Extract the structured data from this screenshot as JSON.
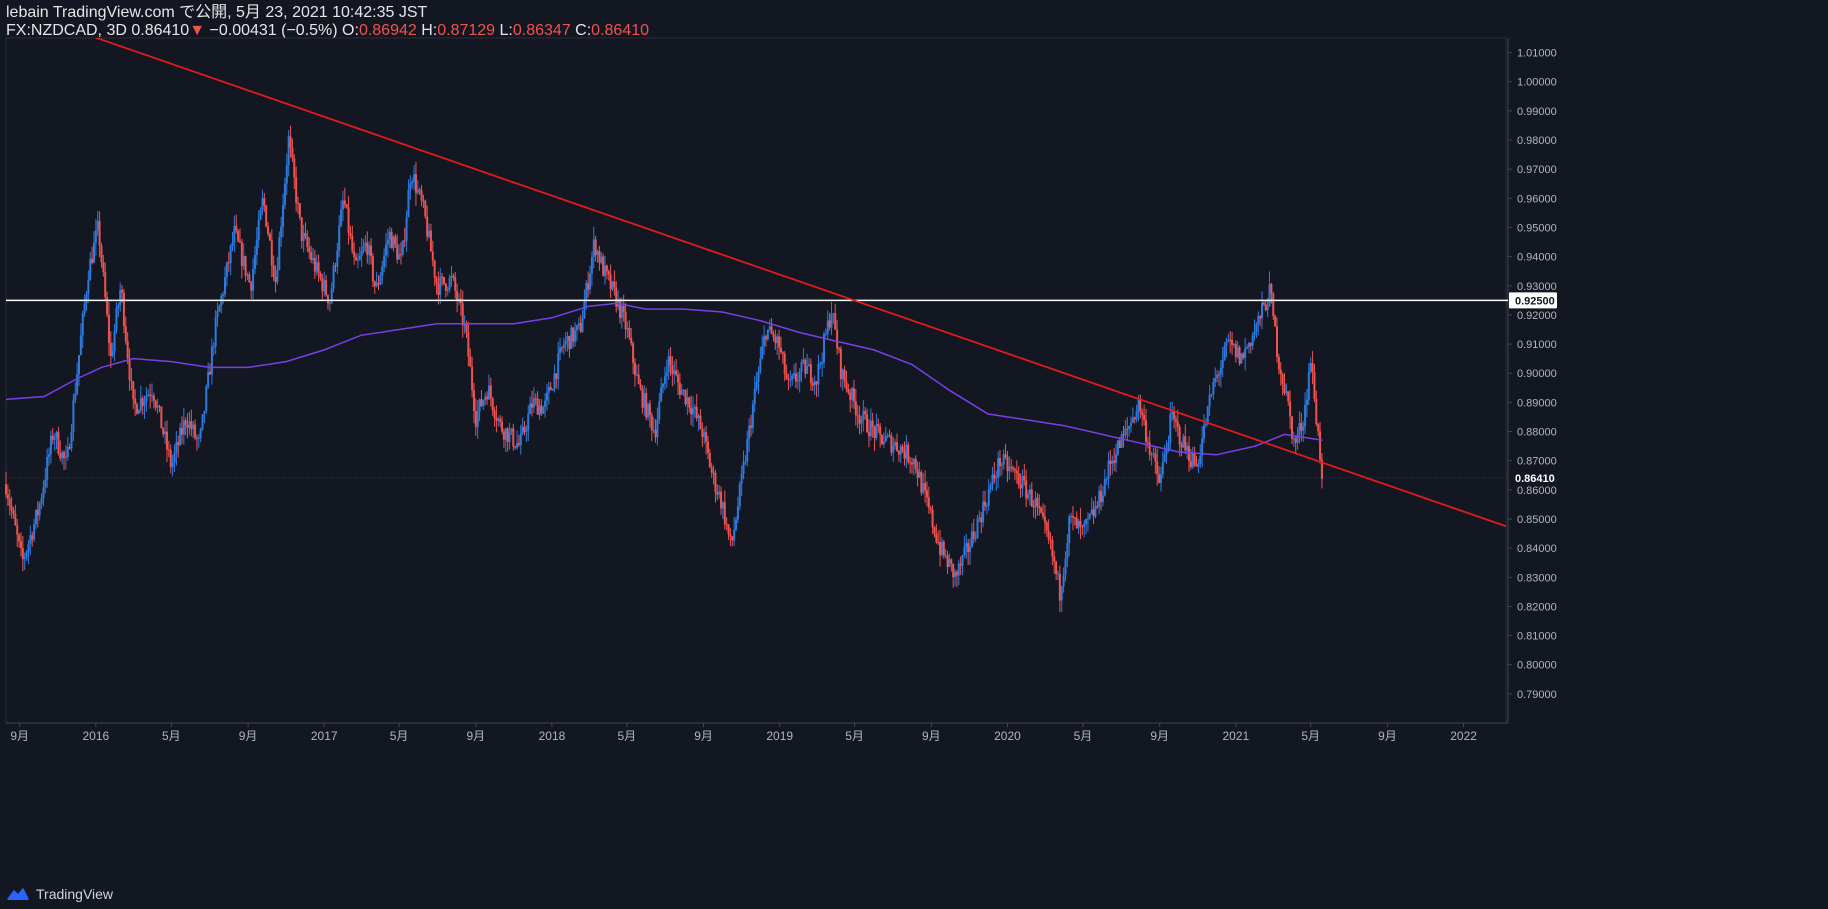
{
  "header": {
    "publish_line": "lebain TradingView.com で公開, 5月 23, 2021 10:42:35 JST",
    "symbol": "FX:NZDCAD, 3D",
    "last_price": "0.86410",
    "change_arrow": "▼",
    "change": "−0.00431 (−0.5%)",
    "o_label": "O:",
    "o_value": "0.86942",
    "h_label": "H:",
    "h_value": "0.87129",
    "l_label": "L:",
    "l_value": "0.86347",
    "c_label": "C:",
    "c_value": "0.86410"
  },
  "footer": {
    "brand": "TradingView",
    "logo_icon": "tradingview-cloud-icon"
  },
  "colors": {
    "background": "#131722",
    "up": "#2e7bdf",
    "down": "#f05350",
    "ma": "#7b3fe4",
    "trendline": "#e31b1b",
    "hline": "#ffffff",
    "axis_text": "#b2b5be"
  },
  "chart_data": {
    "type": "candlestick",
    "title": "FX:NZDCAD, 3D",
    "ylim": [
      0.78,
      1.015
    ],
    "x_range": [
      "2015-08-10",
      "2022-03-10"
    ],
    "y_ticks": [
      "1.01000",
      "1.00000",
      "0.99000",
      "0.98000",
      "0.97000",
      "0.96000",
      "0.95000",
      "0.94000",
      "0.93000",
      "0.92000",
      "0.91000",
      "0.90000",
      "0.89000",
      "0.88000",
      "0.87000",
      "0.86000",
      "0.85000",
      "0.84000",
      "0.83000",
      "0.82000",
      "0.81000",
      "0.80000",
      "0.79000"
    ],
    "x_ticks": [
      {
        "date": "2015-09-01",
        "label": "9月"
      },
      {
        "date": "2016-01-01",
        "label": "2016"
      },
      {
        "date": "2016-05-01",
        "label": "5月"
      },
      {
        "date": "2016-09-01",
        "label": "9月"
      },
      {
        "date": "2017-01-01",
        "label": "2017"
      },
      {
        "date": "2017-05-01",
        "label": "5月"
      },
      {
        "date": "2017-09-01",
        "label": "9月"
      },
      {
        "date": "2018-01-01",
        "label": "2018"
      },
      {
        "date": "2018-05-01",
        "label": "5月"
      },
      {
        "date": "2018-09-01",
        "label": "9月"
      },
      {
        "date": "2019-01-01",
        "label": "2019"
      },
      {
        "date": "2019-05-01",
        "label": "5月"
      },
      {
        "date": "2019-09-01",
        "label": "9月"
      },
      {
        "date": "2020-01-01",
        "label": "2020"
      },
      {
        "date": "2020-05-01",
        "label": "5月"
      },
      {
        "date": "2020-09-01",
        "label": "9月"
      },
      {
        "date": "2021-01-01",
        "label": "2021"
      },
      {
        "date": "2021-05-01",
        "label": "5月"
      },
      {
        "date": "2021-09-01",
        "label": "9月"
      },
      {
        "date": "2022-01-01",
        "label": "2022"
      }
    ],
    "price_path": [
      {
        "date": "2015-08-10",
        "value": 0.862
      },
      {
        "date": "2015-09-05",
        "value": 0.835
      },
      {
        "date": "2015-10-01",
        "value": 0.853
      },
      {
        "date": "2015-10-25",
        "value": 0.88
      },
      {
        "date": "2015-11-15",
        "value": 0.868
      },
      {
        "date": "2015-12-20",
        "value": 0.935
      },
      {
        "date": "2016-01-05",
        "value": 0.95
      },
      {
        "date": "2016-01-25",
        "value": 0.905
      },
      {
        "date": "2016-02-10",
        "value": 0.93
      },
      {
        "date": "2016-03-01",
        "value": 0.888
      },
      {
        "date": "2016-04-01",
        "value": 0.895
      },
      {
        "date": "2016-05-01",
        "value": 0.868
      },
      {
        "date": "2016-05-25",
        "value": 0.885
      },
      {
        "date": "2016-06-15",
        "value": 0.875
      },
      {
        "date": "2016-07-10",
        "value": 0.915
      },
      {
        "date": "2016-08-10",
        "value": 0.948
      },
      {
        "date": "2016-09-05",
        "value": 0.93
      },
      {
        "date": "2016-09-25",
        "value": 0.96
      },
      {
        "date": "2016-10-15",
        "value": 0.932
      },
      {
        "date": "2016-11-05",
        "value": 0.98
      },
      {
        "date": "2016-11-25",
        "value": 0.948
      },
      {
        "date": "2016-12-20",
        "value": 0.935
      },
      {
        "date": "2017-01-10",
        "value": 0.925
      },
      {
        "date": "2017-02-01",
        "value": 0.96
      },
      {
        "date": "2017-02-20",
        "value": 0.935
      },
      {
        "date": "2017-03-10",
        "value": 0.945
      },
      {
        "date": "2017-03-25",
        "value": 0.928
      },
      {
        "date": "2017-04-15",
        "value": 0.948
      },
      {
        "date": "2017-05-05",
        "value": 0.938
      },
      {
        "date": "2017-05-20",
        "value": 0.97
      },
      {
        "date": "2017-06-10",
        "value": 0.955
      },
      {
        "date": "2017-07-01",
        "value": 0.93
      },
      {
        "date": "2017-07-25",
        "value": 0.932
      },
      {
        "date": "2017-08-15",
        "value": 0.915
      },
      {
        "date": "2017-09-01",
        "value": 0.885
      },
      {
        "date": "2017-09-20",
        "value": 0.895
      },
      {
        "date": "2017-10-10",
        "value": 0.882
      },
      {
        "date": "2017-11-10",
        "value": 0.875
      },
      {
        "date": "2017-12-01",
        "value": 0.89
      },
      {
        "date": "2017-12-20",
        "value": 0.888
      },
      {
        "date": "2018-01-20",
        "value": 0.91
      },
      {
        "date": "2018-02-15",
        "value": 0.915
      },
      {
        "date": "2018-03-10",
        "value": 0.945
      },
      {
        "date": "2018-03-25",
        "value": 0.935
      },
      {
        "date": "2018-04-15",
        "value": 0.925
      },
      {
        "date": "2018-05-01",
        "value": 0.915
      },
      {
        "date": "2018-05-20",
        "value": 0.895
      },
      {
        "date": "2018-06-15",
        "value": 0.88
      },
      {
        "date": "2018-07-05",
        "value": 0.905
      },
      {
        "date": "2018-07-25",
        "value": 0.895
      },
      {
        "date": "2018-08-10",
        "value": 0.89
      },
      {
        "date": "2018-08-30",
        "value": 0.88
      },
      {
        "date": "2018-09-15",
        "value": 0.865
      },
      {
        "date": "2018-10-01",
        "value": 0.855
      },
      {
        "date": "2018-10-15",
        "value": 0.84
      },
      {
        "date": "2018-10-30",
        "value": 0.86
      },
      {
        "date": "2018-11-20",
        "value": 0.89
      },
      {
        "date": "2018-12-10",
        "value": 0.915
      },
      {
        "date": "2018-12-30",
        "value": 0.91
      },
      {
        "date": "2019-01-15",
        "value": 0.895
      },
      {
        "date": "2019-02-10",
        "value": 0.902
      },
      {
        "date": "2019-03-01",
        "value": 0.898
      },
      {
        "date": "2019-03-25",
        "value": 0.922
      },
      {
        "date": "2019-04-10",
        "value": 0.9
      },
      {
        "date": "2019-05-10",
        "value": 0.885
      },
      {
        "date": "2019-06-10",
        "value": 0.878
      },
      {
        "date": "2019-07-10",
        "value": 0.875
      },
      {
        "date": "2019-08-05",
        "value": 0.87
      },
      {
        "date": "2019-08-25",
        "value": 0.855
      },
      {
        "date": "2019-09-15",
        "value": 0.84
      },
      {
        "date": "2019-10-10",
        "value": 0.83
      },
      {
        "date": "2019-10-30",
        "value": 0.84
      },
      {
        "date": "2019-11-25",
        "value": 0.855
      },
      {
        "date": "2019-12-20",
        "value": 0.87
      },
      {
        "date": "2020-01-15",
        "value": 0.865
      },
      {
        "date": "2020-02-15",
        "value": 0.855
      },
      {
        "date": "2020-03-10",
        "value": 0.84
      },
      {
        "date": "2020-03-25",
        "value": 0.825
      },
      {
        "date": "2020-04-10",
        "value": 0.85
      },
      {
        "date": "2020-05-01",
        "value": 0.845
      },
      {
        "date": "2020-05-25",
        "value": 0.855
      },
      {
        "date": "2020-06-15",
        "value": 0.87
      },
      {
        "date": "2020-07-10",
        "value": 0.88
      },
      {
        "date": "2020-07-30",
        "value": 0.89
      },
      {
        "date": "2020-08-15",
        "value": 0.875
      },
      {
        "date": "2020-09-01",
        "value": 0.862
      },
      {
        "date": "2020-09-20",
        "value": 0.885
      },
      {
        "date": "2020-10-10",
        "value": 0.875
      },
      {
        "date": "2020-10-30",
        "value": 0.868
      },
      {
        "date": "2020-11-25",
        "value": 0.895
      },
      {
        "date": "2020-12-20",
        "value": 0.91
      },
      {
        "date": "2021-01-10",
        "value": 0.905
      },
      {
        "date": "2021-02-01",
        "value": 0.915
      },
      {
        "date": "2021-02-25",
        "value": 0.928
      },
      {
        "date": "2021-03-10",
        "value": 0.905
      },
      {
        "date": "2021-03-25",
        "value": 0.89
      },
      {
        "date": "2021-04-05",
        "value": 0.875
      },
      {
        "date": "2021-04-20",
        "value": 0.885
      },
      {
        "date": "2021-05-01",
        "value": 0.905
      },
      {
        "date": "2021-05-10",
        "value": 0.885
      },
      {
        "date": "2021-05-20",
        "value": 0.864
      }
    ],
    "moving_average": [
      {
        "date": "2015-08-10",
        "value": 0.891
      },
      {
        "date": "2015-10-10",
        "value": 0.892
      },
      {
        "date": "2015-12-01",
        "value": 0.898
      },
      {
        "date": "2016-01-10",
        "value": 0.902
      },
      {
        "date": "2016-03-01",
        "value": 0.905
      },
      {
        "date": "2016-05-01",
        "value": 0.904
      },
      {
        "date": "2016-07-01",
        "value": 0.902
      },
      {
        "date": "2016-09-01",
        "value": 0.902
      },
      {
        "date": "2016-11-01",
        "value": 0.904
      },
      {
        "date": "2017-01-01",
        "value": 0.908
      },
      {
        "date": "2017-03-01",
        "value": 0.913
      },
      {
        "date": "2017-05-01",
        "value": 0.915
      },
      {
        "date": "2017-07-01",
        "value": 0.917
      },
      {
        "date": "2017-09-01",
        "value": 0.917
      },
      {
        "date": "2017-11-01",
        "value": 0.917
      },
      {
        "date": "2018-01-01",
        "value": 0.919
      },
      {
        "date": "2018-03-01",
        "value": 0.923
      },
      {
        "date": "2018-04-15",
        "value": 0.924
      },
      {
        "date": "2018-06-01",
        "value": 0.922
      },
      {
        "date": "2018-08-01",
        "value": 0.922
      },
      {
        "date": "2018-10-01",
        "value": 0.921
      },
      {
        "date": "2018-12-01",
        "value": 0.918
      },
      {
        "date": "2019-02-01",
        "value": 0.914
      },
      {
        "date": "2019-04-01",
        "value": 0.911
      },
      {
        "date": "2019-06-01",
        "value": 0.908
      },
      {
        "date": "2019-08-01",
        "value": 0.903
      },
      {
        "date": "2019-10-01",
        "value": 0.894
      },
      {
        "date": "2019-12-01",
        "value": 0.886
      },
      {
        "date": "2020-02-01",
        "value": 0.884
      },
      {
        "date": "2020-04-01",
        "value": 0.882
      },
      {
        "date": "2020-06-01",
        "value": 0.879
      },
      {
        "date": "2020-08-01",
        "value": 0.876
      },
      {
        "date": "2020-10-01",
        "value": 0.873
      },
      {
        "date": "2020-12-01",
        "value": 0.872
      },
      {
        "date": "2021-02-01",
        "value": 0.875
      },
      {
        "date": "2021-03-20",
        "value": 0.879
      },
      {
        "date": "2021-05-20",
        "value": 0.877
      }
    ],
    "trendline": {
      "from": {
        "date": "2015-11-30",
        "value": 1.0175
      },
      "to": {
        "date": "2022-03-10",
        "value": 0.8475
      }
    },
    "horizontal_line": {
      "value": 0.925,
      "label": "0.92500"
    },
    "last_price_line": {
      "value": 0.8641,
      "label": "0.86410"
    },
    "grid": false,
    "legend": "none"
  }
}
